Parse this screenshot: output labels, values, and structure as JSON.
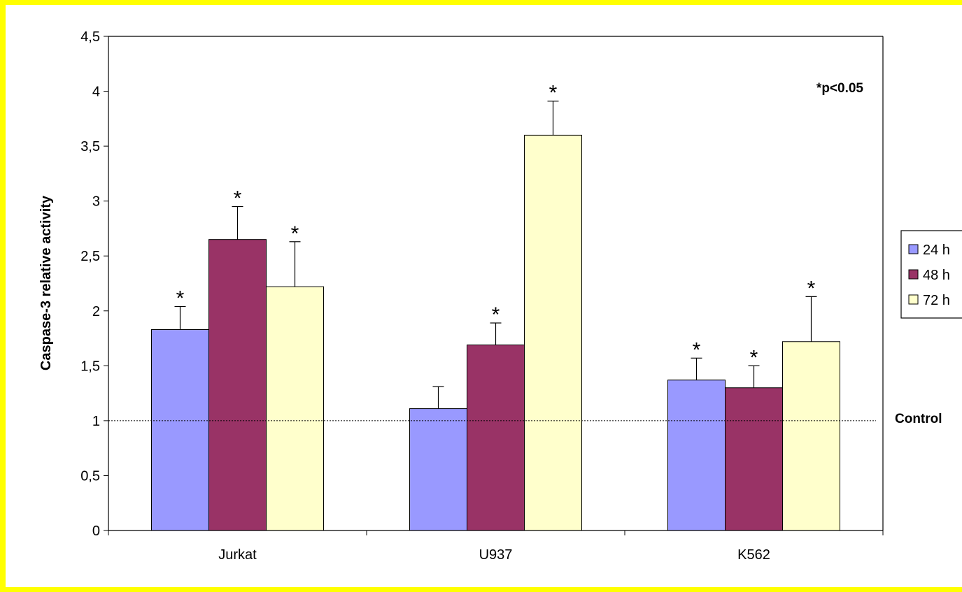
{
  "chart_data": {
    "type": "bar",
    "categories": [
      "Jurkat",
      "U937",
      "K562"
    ],
    "series": [
      {
        "name": "24 h",
        "color": "#9999ff",
        "values": [
          1.83,
          1.11,
          1.37
        ],
        "errors": [
          0.21,
          0.2,
          0.2
        ],
        "significant": [
          true,
          false,
          true
        ]
      },
      {
        "name": "48 h",
        "color": "#993366",
        "values": [
          2.65,
          1.69,
          1.3
        ],
        "errors": [
          0.3,
          0.2,
          0.2
        ],
        "significant": [
          true,
          true,
          true
        ]
      },
      {
        "name": "72 h",
        "color": "#ffffcc",
        "values": [
          2.22,
          3.6,
          1.72
        ],
        "errors": [
          0.41,
          0.31,
          0.41
        ],
        "significant": [
          true,
          true,
          true
        ]
      }
    ],
    "ylabel": "Caspase-3 relative activity",
    "ylim": [
      0,
      4.5
    ],
    "yticks": [
      "0",
      "0,5",
      "1",
      "1,5",
      "2",
      "2,5",
      "3",
      "3,5",
      "4",
      "4,5"
    ],
    "reference_line": {
      "value": 1,
      "label": "Control"
    },
    "annotation": "*p<0.05",
    "significance_marker": "*",
    "grid": false,
    "legend_position": "right"
  }
}
